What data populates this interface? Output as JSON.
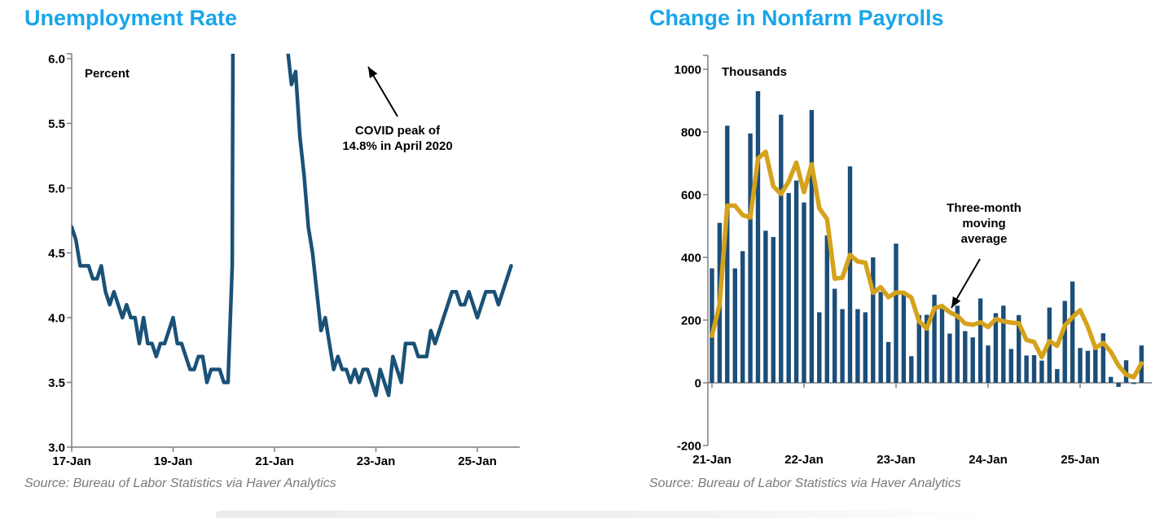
{
  "theme": {
    "title_color": "#18A6E9",
    "line_color": "#1A5177",
    "bar_color": "#1B4E79",
    "moving_average_color": "#D5A21B",
    "axis_color": "#7F7F7F",
    "tick_label_color": "#000000",
    "annotation_color": "#000000",
    "source_color": "#7A7A7A",
    "background": "#FFFFFF"
  },
  "chart_data": [
    {
      "type": "line",
      "title": "Unemployment Rate",
      "ylabel": "Percent",
      "xlabel": "",
      "source": "Source: Bureau of Labor Statistics via Haver Analytics",
      "annotation": {
        "text": "COVID peak of\n14.8% in April 2020"
      },
      "x_tick_labels": [
        "17-Jan",
        "19-Jan",
        "21-Jan",
        "23-Jan",
        "25-Jan"
      ],
      "y_tick_labels": [
        "6.0",
        "5.5",
        "5.0",
        "4.5",
        "4.0",
        "3.5",
        "3.0"
      ],
      "ylim": [
        3.0,
        6.0
      ],
      "grid": false,
      "legend": "none",
      "frequency": "monthly",
      "x_start": "2017-01",
      "x_end": "2025-09",
      "note": "y-axis clipped at 6.0; COVID spike to 14.8% in April 2020 runs off the top of the plot",
      "series": [
        {
          "name": "Unemployment rate (percent)",
          "values": [
            4.7,
            4.6,
            4.4,
            4.4,
            4.4,
            4.3,
            4.3,
            4.4,
            4.2,
            4.1,
            4.2,
            4.1,
            4.0,
            4.1,
            4.0,
            4.0,
            3.8,
            4.0,
            3.8,
            3.8,
            3.7,
            3.8,
            3.8,
            3.9,
            4.0,
            3.8,
            3.8,
            3.7,
            3.6,
            3.6,
            3.7,
            3.7,
            3.5,
            3.6,
            3.6,
            3.6,
            3.5,
            3.5,
            4.4,
            14.8,
            13.2,
            11.0,
            10.2,
            8.4,
            7.8,
            6.8,
            6.7,
            6.7,
            6.4,
            6.2,
            6.1,
            6.1,
            5.8,
            5.9,
            5.4,
            5.1,
            4.7,
            4.5,
            4.2,
            3.9,
            4.0,
            3.8,
            3.6,
            3.7,
            3.6,
            3.6,
            3.5,
            3.6,
            3.5,
            3.6,
            3.6,
            3.5,
            3.4,
            3.6,
            3.5,
            3.4,
            3.7,
            3.6,
            3.5,
            3.8,
            3.8,
            3.8,
            3.7,
            3.7,
            3.7,
            3.9,
            3.8,
            3.9,
            4.0,
            4.1,
            4.2,
            4.2,
            4.1,
            4.1,
            4.2,
            4.1,
            4.0,
            4.1,
            4.2,
            4.2,
            4.2,
            4.1,
            4.2,
            4.3,
            4.4
          ]
        }
      ]
    },
    {
      "type": "bar",
      "title": "Change in Nonfarm Payrolls",
      "ylabel": "Thousands",
      "xlabel": "",
      "source": "Source: Bureau of Labor Statistics via Haver Analytics",
      "annotation": {
        "text": "Three-month\nmoving\naverage"
      },
      "x_tick_labels": [
        "21-Jan",
        "22-Jan",
        "23-Jan",
        "24-Jan",
        "25-Jan"
      ],
      "y_tick_labels": [
        "1000",
        "800",
        "600",
        "400",
        "200",
        "0",
        "-200"
      ],
      "ylim": [
        -200,
        1000
      ],
      "grid": false,
      "legend": "none",
      "frequency": "monthly",
      "x_start": "2021-01",
      "x_end": "2025-09",
      "series": [
        {
          "name": "Monthly change in nonfarm payrolls (thousands)",
          "type": "bar",
          "values": [
            365,
            510,
            820,
            365,
            420,
            795,
            930,
            485,
            465,
            855,
            605,
            645,
            575,
            870,
            225,
            470,
            300,
            235,
            690,
            235,
            225,
            400,
            290,
            130,
            444,
            287,
            85,
            216,
            217,
            281,
            236,
            157,
            246,
            165,
            145,
            269,
            119,
            222,
            246,
            108,
            216,
            87,
            88,
            71,
            240,
            44,
            261,
            323,
            111,
            102,
            120,
            158,
            19,
            -13,
            72,
            -4,
            119
          ]
        },
        {
          "name": "Three-month moving average",
          "type": "line",
          "values": [
            150,
            250,
            565,
            565,
            535,
            527,
            715,
            737,
            627,
            602,
            642,
            702,
            608,
            697,
            557,
            522,
            332,
            335,
            408,
            387,
            383,
            287,
            305,
            273,
            288,
            287,
            272,
            196,
            173,
            238,
            245,
            225,
            213,
            189,
            185,
            193,
            178,
            203,
            196,
            192,
            190,
            137,
            130,
            82,
            133,
            118,
            182,
            209,
            232,
            179,
            111,
            127,
            99,
            55,
            26,
            18,
            62
          ]
        }
      ]
    }
  ]
}
